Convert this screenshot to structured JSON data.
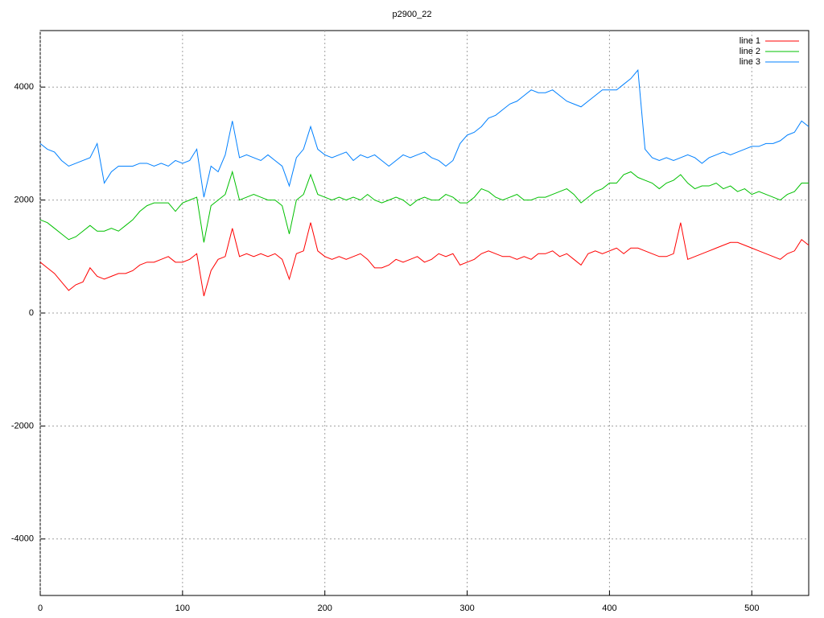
{
  "chart_data": {
    "type": "line",
    "title": "p2900_22",
    "x": [
      0,
      5,
      10,
      15,
      20,
      25,
      30,
      35,
      40,
      45,
      50,
      55,
      60,
      65,
      70,
      75,
      80,
      85,
      90,
      95,
      100,
      105,
      110,
      115,
      120,
      125,
      130,
      135,
      140,
      145,
      150,
      155,
      160,
      165,
      170,
      175,
      180,
      185,
      190,
      195,
      200,
      205,
      210,
      215,
      220,
      225,
      230,
      235,
      240,
      245,
      250,
      255,
      260,
      265,
      270,
      275,
      280,
      285,
      290,
      295,
      300,
      305,
      310,
      315,
      320,
      325,
      330,
      335,
      340,
      345,
      350,
      355,
      360,
      365,
      370,
      375,
      380,
      385,
      390,
      395,
      400,
      405,
      410,
      415,
      420,
      425,
      430,
      435,
      440,
      445,
      450,
      455,
      460,
      465,
      470,
      475,
      480,
      485,
      490,
      495,
      500,
      505,
      510,
      515,
      520,
      525,
      530,
      535,
      540
    ],
    "series": [
      {
        "name": "line 1",
        "color": "#ff0000",
        "values": [
          900,
          800,
          700,
          550,
          400,
          500,
          550,
          800,
          650,
          600,
          650,
          700,
          700,
          750,
          850,
          900,
          900,
          950,
          1000,
          900,
          900,
          950,
          1050,
          300,
          750,
          950,
          1000,
          1500,
          1000,
          1050,
          1000,
          1050,
          1000,
          1050,
          950,
          600,
          1050,
          1100,
          1600,
          1100,
          1000,
          950,
          1000,
          950,
          1000,
          1050,
          950,
          800,
          800,
          850,
          950,
          900,
          950,
          1000,
          900,
          950,
          1050,
          1000,
          1050,
          850,
          900,
          950,
          1050,
          1100,
          1050,
          1000,
          1000,
          950,
          1000,
          950,
          1050,
          1050,
          1100,
          1000,
          1050,
          950,
          850,
          1050,
          1100,
          1050,
          1100,
          1150,
          1050,
          1150,
          1150,
          1100,
          1050,
          1000,
          1000,
          1050,
          1600,
          950,
          1000,
          1050,
          1100,
          1150,
          1200,
          1250,
          1250,
          1200,
          1150,
          1100,
          1050,
          1000,
          950,
          1050,
          1100,
          1300,
          1200
        ]
      },
      {
        "name": "line 2",
        "color": "#00c000",
        "values": [
          1650,
          1600,
          1500,
          1400,
          1300,
          1350,
          1450,
          1550,
          1450,
          1450,
          1500,
          1450,
          1550,
          1650,
          1800,
          1900,
          1950,
          1950,
          1950,
          1800,
          1950,
          2000,
          2050,
          1250,
          1900,
          2000,
          2100,
          2500,
          2000,
          2050,
          2100,
          2050,
          2000,
          2000,
          1900,
          1400,
          2000,
          2100,
          2450,
          2100,
          2050,
          2000,
          2050,
          2000,
          2050,
          2000,
          2100,
          2000,
          1950,
          2000,
          2050,
          2000,
          1900,
          2000,
          2050,
          2000,
          2000,
          2100,
          2050,
          1950,
          1950,
          2050,
          2200,
          2150,
          2050,
          2000,
          2050,
          2100,
          2000,
          2000,
          2050,
          2050,
          2100,
          2150,
          2200,
          2100,
          1950,
          2050,
          2150,
          2200,
          2300,
          2300,
          2450,
          2500,
          2400,
          2350,
          2300,
          2200,
          2300,
          2350,
          2450,
          2300,
          2200,
          2250,
          2250,
          2300,
          2200,
          2250,
          2150,
          2200,
          2100,
          2150,
          2100,
          2050,
          2000,
          2100,
          2150,
          2300,
          2300
        ]
      },
      {
        "name": "line 3",
        "color": "#0080ff",
        "values": [
          3000,
          2900,
          2850,
          2700,
          2600,
          2650,
          2700,
          2750,
          3000,
          2300,
          2500,
          2600,
          2600,
          2600,
          2650,
          2650,
          2600,
          2650,
          2600,
          2700,
          2650,
          2700,
          2900,
          2050,
          2600,
          2500,
          2800,
          3400,
          2750,
          2800,
          2750,
          2700,
          2800,
          2700,
          2600,
          2250,
          2750,
          2900,
          3300,
          2900,
          2800,
          2750,
          2800,
          2850,
          2700,
          2800,
          2750,
          2800,
          2700,
          2600,
          2700,
          2800,
          2750,
          2800,
          2850,
          2750,
          2700,
          2600,
          2700,
          3000,
          3150,
          3200,
          3300,
          3450,
          3500,
          3600,
          3700,
          3750,
          3850,
          3950,
          3900,
          3900,
          3950,
          3850,
          3750,
          3700,
          3650,
          3750,
          3850,
          3950,
          3950,
          3950,
          4050,
          4150,
          4300,
          2900,
          2750,
          2700,
          2750,
          2700,
          2750,
          2800,
          2750,
          2650,
          2750,
          2800,
          2850,
          2800,
          2850,
          2900,
          2950,
          2950,
          3000,
          3000,
          3050,
          3150,
          3200,
          3400,
          3300
        ]
      }
    ],
    "xlim": [
      0,
      540
    ],
    "xticks": [
      0,
      100,
      200,
      300,
      400,
      500
    ],
    "ylim": [
      -5000,
      5000
    ],
    "yticks": [
      -4000,
      -2000,
      0,
      2000,
      4000
    ],
    "grid": true,
    "legend": "top-right"
  }
}
